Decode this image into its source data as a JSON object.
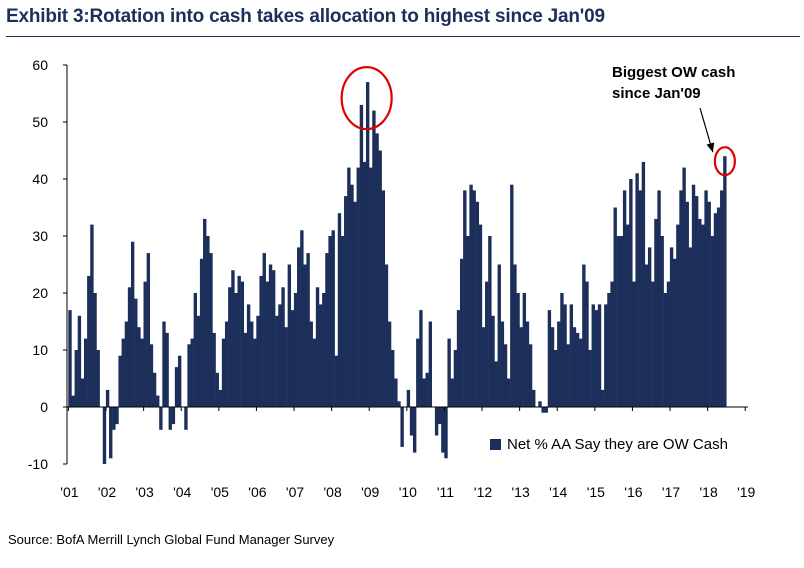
{
  "title": "Exhibit 3:Rotation into cash takes allocation to highest since Jan'09",
  "source": "Source: BofA Merrill Lynch Global Fund Manager Survey",
  "annotation": [
    "Biggest OW cash",
    "since Jan'09"
  ],
  "colors": {
    "bar": "#1c2f5a",
    "title": "#1c2f5a",
    "highlight_circle": "#e00000"
  },
  "chart_data": {
    "type": "bar",
    "title": "Exhibit 3:Rotation into cash takes allocation to highest since Jan'09",
    "xlabel": "",
    "ylabel": "",
    "ylim": [
      -10,
      60
    ],
    "y_ticks": [
      -10,
      0,
      10,
      20,
      30,
      40,
      50,
      60
    ],
    "x_tick_labels": [
      "'01",
      "'02",
      "'03",
      "'04",
      "'05",
      "'06",
      "'07",
      "'08",
      "'09",
      "'10",
      "'11",
      "'12",
      "'13",
      "'14",
      "'15",
      "'16",
      "'17",
      "'18",
      "'19"
    ],
    "grid": false,
    "legend_position": "bottom-right",
    "x_start": "2001-01",
    "frequency": "monthly",
    "series": [
      {
        "name": "Net % AA Say they are OW Cash",
        "values": [
          17,
          2,
          10,
          16,
          5,
          12,
          23,
          32,
          20,
          10,
          0,
          -10,
          3,
          -9,
          -4,
          -3,
          9,
          12,
          15,
          21,
          29,
          19,
          14,
          12,
          22,
          27,
          11,
          6,
          2,
          -4,
          15,
          13,
          -4,
          -3,
          7,
          9,
          0,
          -4,
          11,
          12,
          20,
          16,
          26,
          33,
          30,
          27,
          13,
          6,
          3,
          12,
          15,
          21,
          24,
          20,
          23,
          22,
          13,
          18,
          15,
          12,
          16,
          23,
          27,
          22,
          25,
          24,
          16,
          18,
          21,
          14,
          25,
          17,
          20,
          28,
          31,
          25,
          27,
          15,
          12,
          21,
          18,
          20,
          27,
          30,
          31,
          9,
          34,
          30,
          37,
          42,
          39,
          36,
          42,
          53,
          43,
          57,
          42,
          52,
          48,
          45,
          38,
          25,
          15,
          10,
          5,
          1,
          -7,
          0,
          3,
          -5,
          -8,
          12,
          17,
          5,
          6,
          15,
          0,
          -5,
          -3,
          -8,
          -9,
          12,
          5,
          10,
          17,
          26,
          38,
          30,
          39,
          38,
          36,
          32,
          14,
          22,
          30,
          16,
          8,
          25,
          15,
          11,
          5,
          39,
          25,
          20,
          14,
          20,
          15,
          11,
          3,
          0,
          1,
          -1,
          -1,
          17,
          14,
          10,
          15,
          20,
          18,
          11,
          18,
          14,
          13,
          12,
          25,
          22,
          10,
          18,
          17,
          18,
          3,
          18,
          20,
          22,
          35,
          30,
          30,
          38,
          32,
          40,
          22,
          41,
          38,
          43,
          25,
          28,
          22,
          33,
          38,
          30,
          20,
          22,
          28,
          26,
          32,
          38,
          42,
          36,
          28,
          39,
          37,
          33,
          32,
          38,
          36,
          30,
          34,
          35,
          38,
          44
        ]
      }
    ]
  }
}
